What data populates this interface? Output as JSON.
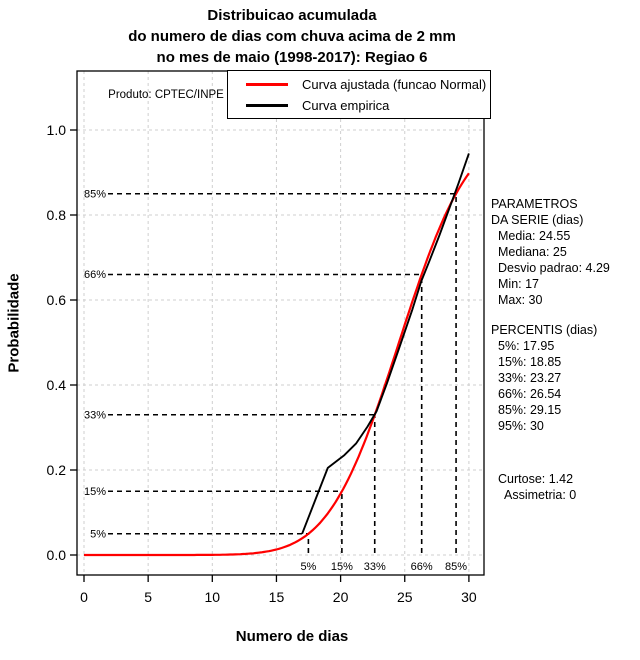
{
  "title": {
    "line1": "Distribuicao acumulada",
    "line2": "do numero de dias com chuva acima de 2 mm",
    "line3": "no mes de maio (1998-2017): Regiao 6"
  },
  "product_label": "Produto: CPTEC/INPE",
  "legend": [
    {
      "label": "Curva ajustada (funcao Normal)",
      "color": "#ff0000"
    },
    {
      "label": "Curva empirica",
      "color": "#000000"
    }
  ],
  "axes": {
    "xlabel": "Numero de dias",
    "ylabel": "Probabilidade"
  },
  "stats_panel": {
    "params_title1": "PARAMETROS",
    "params_title2": "DA SERIE (dias)",
    "params": [
      "Media: 24.55",
      "Mediana: 25",
      "Desvio padrao: 4.29",
      "Min: 17",
      "Max: 30"
    ],
    "percentis_title": "PERCENTIS (dias)",
    "percentis": [
      "5%: 17.95",
      "15%: 18.85",
      "33%: 23.27",
      "66%: 26.54",
      "85%: 29.15",
      "95%: 30"
    ],
    "curtose": "Curtose: 1.42",
    "assimetria": "Assimetria: 0"
  },
  "chart_data": {
    "type": "line",
    "title": "Distribuicao acumulada do numero de dias com chuva acima de 2 mm no mes de maio (1998-2017): Regiao 6",
    "xlabel": "Numero de dias",
    "ylabel": "Probabilidade",
    "xlim": [
      0,
      30
    ],
    "ylim": [
      0,
      1
    ],
    "x_ticks": [
      0,
      5,
      10,
      15,
      20,
      25,
      30
    ],
    "y_ticks": [
      0,
      0.2,
      0.4,
      0.6,
      0.8,
      1.0
    ],
    "grid": true,
    "grid_color": "#cfcfcf",
    "series": [
      {
        "name": "Curva ajustada (funcao Normal)",
        "type": "normal_cdf",
        "mean": 24.55,
        "sd": 4.29,
        "color": "#ff0000"
      },
      {
        "name": "Curva empirica",
        "type": "polyline",
        "color": "#000000",
        "points": [
          [
            17,
            0.05
          ],
          [
            19,
            0.205
          ],
          [
            20.3,
            0.235
          ],
          [
            21.2,
            0.262
          ],
          [
            22.1,
            0.302
          ],
          [
            22.8,
            0.338
          ],
          [
            23.6,
            0.403
          ],
          [
            24.6,
            0.49
          ],
          [
            25.6,
            0.578
          ],
          [
            26.3,
            0.645
          ],
          [
            26.9,
            0.69
          ],
          [
            27.7,
            0.752
          ],
          [
            28.5,
            0.818
          ],
          [
            29.2,
            0.875
          ],
          [
            30,
            0.945
          ]
        ]
      }
    ],
    "percentile_lines": [
      {
        "label": "5%",
        "prob": 0.05,
        "x_fit": 17.49
      },
      {
        "label": "15%",
        "prob": 0.15,
        "x_fit": 20.1
      },
      {
        "label": "33%",
        "prob": 0.33,
        "x_fit": 22.66
      },
      {
        "label": "66%",
        "prob": 0.66,
        "x_fit": 26.32
      },
      {
        "label": "85%",
        "prob": 0.85,
        "x_fit": 29.0
      }
    ],
    "stats": {
      "media": 24.55,
      "mediana": 25,
      "desvio_padrao": 4.29,
      "min": 17,
      "max": 30,
      "percentis": {
        "5": 17.95,
        "15": 18.85,
        "33": 23.27,
        "66": 26.54,
        "85": 29.15,
        "95": 30
      },
      "curtose": 1.42,
      "assimetria": 0
    }
  }
}
